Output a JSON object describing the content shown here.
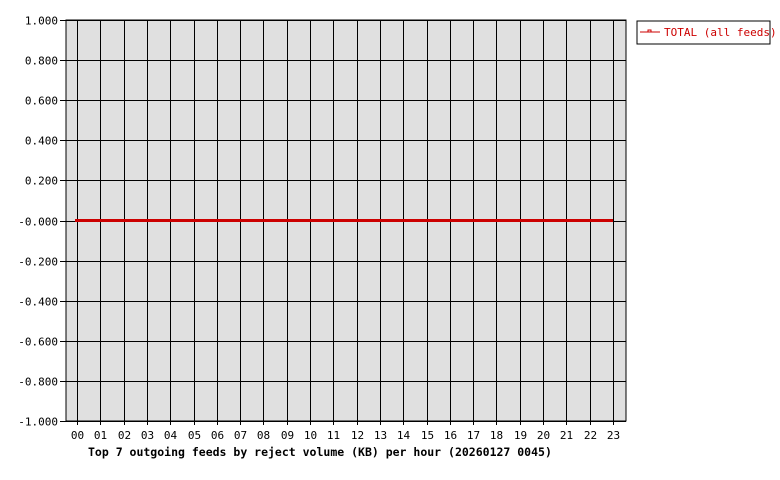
{
  "chart_data": {
    "type": "line",
    "title": "Top 7 outgoing feeds by reject volume (KB) per hour (20260127 0045)",
    "xlabel": "",
    "ylabel": "",
    "categories": [
      "00",
      "01",
      "02",
      "03",
      "04",
      "05",
      "06",
      "07",
      "08",
      "09",
      "10",
      "11",
      "12",
      "13",
      "14",
      "15",
      "16",
      "17",
      "18",
      "19",
      "20",
      "21",
      "22",
      "23"
    ],
    "ylim": [
      -1,
      1
    ],
    "yticks": [
      "1.000",
      "0.800",
      "0.600",
      "0.400",
      "0.200",
      "-0.000",
      "-0.200",
      "-0.400",
      "-0.600",
      "-0.800",
      "-1.000"
    ],
    "grid": true,
    "legend_position": "top-right",
    "series": [
      {
        "name": "TOTAL (all feeds)",
        "color": "#cc0000",
        "values": [
          0,
          0,
          0,
          0,
          0,
          0,
          0,
          0,
          0,
          0,
          0,
          0,
          0,
          0,
          0,
          0,
          0,
          0,
          0,
          0,
          0,
          0,
          0,
          0
        ]
      }
    ],
    "colors": {
      "plot_background": "#e0e0e0",
      "grid": "#000000"
    }
  }
}
